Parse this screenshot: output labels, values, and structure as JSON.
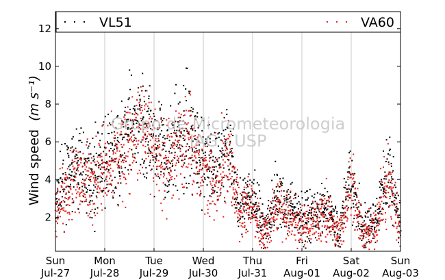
{
  "chart_data": {
    "type": "scatter",
    "ylabel": "Wind speed",
    "ylabel_unit": "(m s⁻¹)",
    "ylim": [
      0.2,
      12.9
    ],
    "yticks": [
      2,
      4,
      6,
      8,
      10,
      12
    ],
    "xlim": [
      "2014-07-27",
      "2014-08-03"
    ],
    "grid": "vertical",
    "legend_position": "top",
    "xticks": [
      {
        "day": "Sun",
        "date": "Jul-27"
      },
      {
        "day": "Mon",
        "date": "Jul-28"
      },
      {
        "day": "Tue",
        "date": "Jul-29"
      },
      {
        "day": "Wed",
        "date": "Jul-30"
      },
      {
        "day": "Thu",
        "date": "Jul-31"
      },
      {
        "day": "Fri",
        "date": "Aug-01"
      },
      {
        "day": "Sat",
        "date": "Aug-02"
      },
      {
        "day": "Sun",
        "date": "Aug-03"
      }
    ],
    "watermark": [
      "Grupo de Micrometeorologia",
      "IAG - USP"
    ],
    "series": [
      {
        "name": "VL51",
        "color": "#000000",
        "x": [
          "2014-07-27 00:00",
          "2014-07-27 06:00",
          "2014-07-27 12:00",
          "2014-07-27 18:00",
          "2014-07-28 00:00",
          "2014-07-28 06:00",
          "2014-07-28 12:00",
          "2014-07-28 18:00",
          "2014-07-29 00:00",
          "2014-07-29 06:00",
          "2014-07-29 12:00",
          "2014-07-29 18:00",
          "2014-07-30 00:00",
          "2014-07-30 06:00",
          "2014-07-30 12:00",
          "2014-07-30 18:00",
          "2014-07-31 00:00",
          "2014-07-31 06:00",
          "2014-07-31 12:00",
          "2014-07-31 18:00",
          "2014-08-01 00:00",
          "2014-08-01 06:00",
          "2014-08-01 12:00",
          "2014-08-01 18:00",
          "2014-08-02 00:00",
          "2014-08-02 06:00",
          "2014-08-02 12:00",
          "2014-08-02 18:00",
          "2014-08-03 00:00"
        ],
        "y": [
          2.7,
          4.2,
          4.6,
          4.1,
          4.9,
          5.4,
          6.3,
          7.1,
          6.0,
          5.2,
          6.3,
          6.6,
          5.0,
          4.5,
          5.7,
          2.6,
          3.0,
          1.3,
          3.1,
          2.3,
          2.0,
          2.1,
          2.7,
          1.2,
          4.0,
          1.4,
          1.9,
          4.5,
          1.4
        ]
      },
      {
        "name": "VA60",
        "color": "#e8211d",
        "x": [
          "2014-07-27 00:00",
          "2014-07-27 06:00",
          "2014-07-27 12:00",
          "2014-07-27 18:00",
          "2014-07-28 00:00",
          "2014-07-28 06:00",
          "2014-07-28 12:00",
          "2014-07-28 18:00",
          "2014-07-29 00:00",
          "2014-07-29 06:00",
          "2014-07-29 12:00",
          "2014-07-29 18:00",
          "2014-07-30 00:00",
          "2014-07-30 06:00",
          "2014-07-30 12:00",
          "2014-07-30 18:00",
          "2014-07-31 00:00",
          "2014-07-31 06:00",
          "2014-07-31 12:00",
          "2014-07-31 18:00",
          "2014-08-01 00:00",
          "2014-08-01 06:00",
          "2014-08-01 12:00",
          "2014-08-01 18:00",
          "2014-08-02 00:00",
          "2014-08-02 06:00",
          "2014-08-02 12:00",
          "2014-08-02 18:00",
          "2014-08-03 00:00"
        ],
        "y": [
          2.4,
          3.6,
          4.2,
          3.8,
          4.5,
          5.0,
          5.8,
          6.9,
          5.6,
          4.8,
          5.9,
          6.1,
          4.6,
          4.0,
          5.1,
          2.2,
          2.6,
          1.0,
          2.7,
          1.9,
          1.6,
          1.7,
          2.3,
          0.9,
          3.6,
          1.0,
          1.5,
          4.1,
          1.1
        ]
      }
    ]
  }
}
